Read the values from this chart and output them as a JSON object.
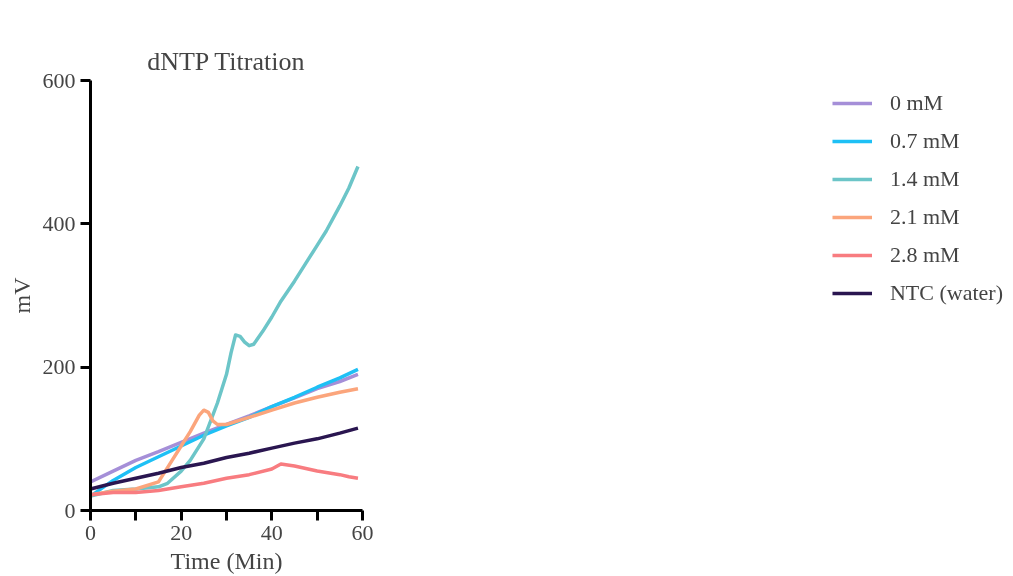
{
  "chart_data": {
    "type": "line",
    "title": "dNTP Titration",
    "xlabel": "Time (Min)",
    "ylabel": "mV",
    "xlim": [
      0,
      60
    ],
    "ylim": [
      0,
      600
    ],
    "xticks": [
      0,
      {
        "value": 10,
        "label": null
      },
      20,
      {
        "value": 30,
        "label": null
      },
      40,
      {
        "value": 50,
        "label": null
      },
      60
    ],
    "yticks": [
      0,
      200,
      400,
      600
    ],
    "grid": false,
    "legend": "right",
    "marker": "none",
    "line_style": "solid",
    "series": [
      {
        "name": "0 mM",
        "color": "#a58fd8",
        "x": [
          0,
          5,
          10,
          15,
          20,
          25,
          30,
          35,
          40,
          45,
          50,
          55,
          59
        ],
        "values": [
          40,
          55,
          70,
          82,
          95,
          108,
          120,
          132,
          145,
          157,
          170,
          180,
          190
        ]
      },
      {
        "name": "0.7 mM",
        "color": "#1ec0f5",
        "x": [
          0,
          5,
          10,
          15,
          20,
          25,
          30,
          35,
          40,
          45,
          50,
          55,
          59
        ],
        "values": [
          20,
          42,
          60,
          75,
          90,
          105,
          118,
          130,
          145,
          158,
          172,
          185,
          197
        ]
      },
      {
        "name": "1.4 mM",
        "color": "#6cc5c8",
        "x": [
          0,
          5,
          10,
          15,
          17,
          20,
          22,
          25,
          28,
          30,
          31,
          32,
          33,
          34,
          35,
          36,
          38,
          40,
          42,
          45,
          48,
          50,
          52,
          55,
          57,
          59
        ],
        "values": [
          20,
          28,
          30,
          33,
          38,
          55,
          70,
          100,
          150,
          190,
          220,
          245,
          243,
          235,
          230,
          232,
          250,
          270,
          292,
          320,
          350,
          370,
          390,
          425,
          450,
          480
        ]
      },
      {
        "name": "2.1 mM",
        "color": "#fba57c",
        "x": [
          0,
          5,
          10,
          15,
          18,
          20,
          22,
          24,
          25,
          26,
          27,
          28,
          30,
          35,
          40,
          45,
          50,
          55,
          59
        ],
        "values": [
          22,
          27,
          30,
          40,
          70,
          90,
          110,
          133,
          140,
          137,
          125,
          120,
          120,
          130,
          140,
          150,
          158,
          165,
          170
        ]
      },
      {
        "name": "2.8 mM",
        "color": "#f87c80",
        "x": [
          0,
          5,
          10,
          15,
          20,
          25,
          30,
          35,
          40,
          42,
          45,
          50,
          55,
          57,
          59
        ],
        "values": [
          22,
          25,
          25,
          28,
          33,
          38,
          45,
          50,
          58,
          65,
          62,
          55,
          50,
          47,
          45
        ]
      },
      {
        "name": "NTC (water)",
        "color": "#2a1650",
        "x": [
          0,
          5,
          10,
          15,
          20,
          25,
          30,
          35,
          40,
          45,
          50,
          55,
          59
        ],
        "values": [
          30,
          38,
          45,
          52,
          60,
          66,
          74,
          80,
          87,
          94,
          100,
          108,
          115
        ]
      }
    ]
  }
}
